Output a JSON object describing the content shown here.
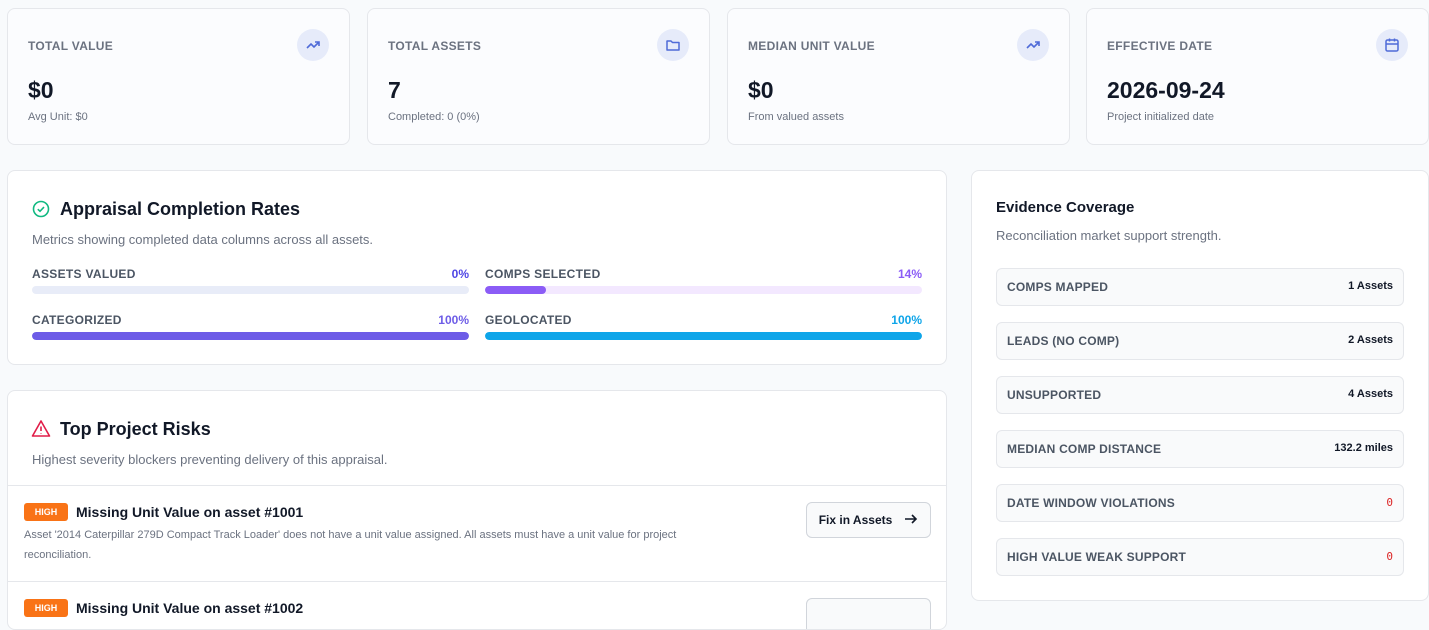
{
  "stats": [
    {
      "label": "TOTAL VALUE",
      "value": "$0",
      "note": "Avg Unit: $0"
    },
    {
      "label": "TOTAL ASSETS",
      "value": "7",
      "note": "Completed: 0 (0%)"
    },
    {
      "label": "MEDIAN UNIT VALUE",
      "value": "$0",
      "note": "From valued assets"
    },
    {
      "label": "EFFECTIVE DATE",
      "value": "2026-09-24",
      "note": "Project initialized date"
    }
  ],
  "completion": {
    "title": "Appraisal Completion Rates",
    "subtitle": "Metrics showing completed data columns across all assets.",
    "metrics": [
      {
        "label": "ASSETS VALUED",
        "percent": 0,
        "percent_label": "0%",
        "color": "#4f46e5",
        "track": "#e8ecf8"
      },
      {
        "label": "COMPS SELECTED",
        "percent": 14,
        "percent_label": "14%",
        "color": "#8b5cf6",
        "track": "#f3e8ff"
      },
      {
        "label": "CATEGORIZED",
        "percent": 100,
        "percent_label": "100%",
        "color": "#6d5ce7",
        "track": "#e8ecf8"
      },
      {
        "label": "GEOLOCATED",
        "percent": 100,
        "percent_label": "100%",
        "color": "#0ea5e9",
        "track": "#e0f2fe"
      }
    ]
  },
  "risks": {
    "title": "Top Project Risks",
    "subtitle": "Highest severity blockers preventing delivery of this appraisal.",
    "items": [
      {
        "severity": "HIGH",
        "title": "Missing Unit Value on asset #1001",
        "description": "Asset '2014 Caterpillar 279D Compact Track Loader' does not have a unit value assigned. All assets must have a unit value for project reconciliation.",
        "action": "Fix in Assets"
      },
      {
        "severity": "HIGH",
        "title": "Missing Unit Value on asset #1002"
      }
    ]
  },
  "evidence": {
    "title": "Evidence Coverage",
    "subtitle": "Reconciliation market support strength.",
    "rows": [
      {
        "label": "COMPS MAPPED",
        "value": "1 Assets"
      },
      {
        "label": "LEADS (NO COMP)",
        "value": "2 Assets"
      },
      {
        "label": "UNSUPPORTED",
        "value": "4 Assets"
      },
      {
        "label": "MEDIAN COMP DISTANCE",
        "value": "132.2 miles"
      },
      {
        "label": "DATE WINDOW VIOLATIONS",
        "value": 0
      },
      {
        "label": "HIGH VALUE WEAK SUPPORT",
        "value": 0
      }
    ]
  }
}
